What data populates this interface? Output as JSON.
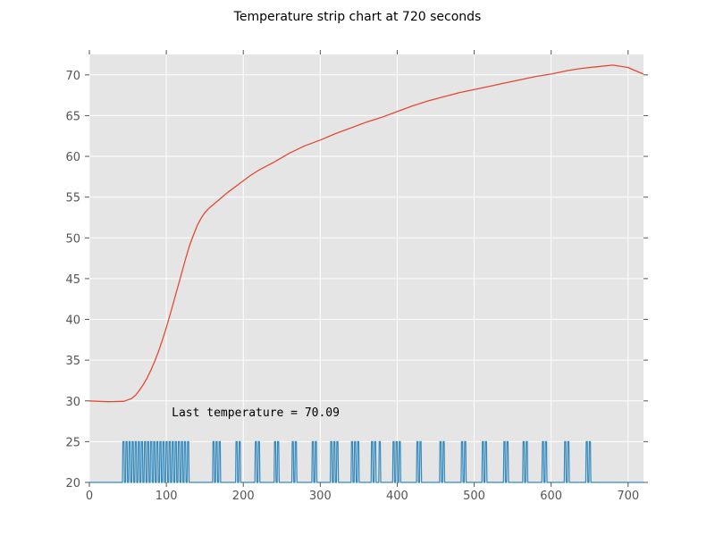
{
  "chart_data": {
    "type": "line",
    "title": "Temperature strip chart at 720 seconds",
    "xlabel": "",
    "ylabel": "",
    "xlim": [
      0,
      720
    ],
    "ylim": [
      20,
      72.5
    ],
    "xticks": [
      0,
      100,
      200,
      300,
      400,
      500,
      600,
      700
    ],
    "yticks": [
      20,
      25,
      30,
      35,
      40,
      45,
      50,
      55,
      60,
      65,
      70
    ],
    "grid": true,
    "style": "ggplot",
    "annotation": {
      "text": "Last temperature = 70.09",
      "x": 107,
      "y": 28
    },
    "series": [
      {
        "color": "#E24A33",
        "x": [
          0,
          25,
          45,
          55,
          60,
          65,
          70,
          75,
          80,
          85,
          90,
          95,
          100,
          105,
          110,
          115,
          120,
          125,
          130,
          135,
          140,
          145,
          150,
          155,
          160,
          165,
          170,
          175,
          180,
          190,
          200,
          210,
          220,
          240,
          260,
          280,
          300,
          320,
          340,
          360,
          380,
          400,
          420,
          440,
          460,
          480,
          500,
          520,
          540,
          560,
          580,
          600,
          620,
          640,
          660,
          680,
          700,
          720
        ],
        "y": [
          30.0,
          29.9,
          29.95,
          30.3,
          30.7,
          31.3,
          32.0,
          32.8,
          33.8,
          34.9,
          36.1,
          37.5,
          39.0,
          40.6,
          42.3,
          44.0,
          45.7,
          47.4,
          49.0,
          50.3,
          51.5,
          52.4,
          53.1,
          53.6,
          54.0,
          54.4,
          54.8,
          55.2,
          55.6,
          56.3,
          57.0,
          57.7,
          58.3,
          59.3,
          60.4,
          61.3,
          62.0,
          62.8,
          63.5,
          64.2,
          64.8,
          65.5,
          66.2,
          66.8,
          67.3,
          67.8,
          68.2,
          68.6,
          69.0,
          69.4,
          69.8,
          70.1,
          70.5,
          70.8,
          71.0,
          71.2,
          70.9,
          70.09
        ]
      },
      {
        "color": "#348ABD",
        "low": 20,
        "high": 25,
        "pulse_starts": [
          43,
          47,
          51,
          55,
          59,
          63,
          67,
          71,
          75,
          79,
          83,
          87,
          91,
          95,
          99,
          103,
          107,
          111,
          115,
          119,
          123,
          127,
          160,
          164,
          168,
          190,
          194,
          215,
          219,
          240,
          244,
          263,
          267,
          289,
          293,
          313,
          317,
          321,
          340,
          344,
          348,
          366,
          370,
          376,
          394,
          398,
          402,
          425,
          429,
          455,
          459,
          483,
          487,
          510,
          514,
          538,
          542,
          563,
          567,
          588,
          592,
          617,
          621,
          645,
          649
        ],
        "pulse_width": 2
      }
    ]
  }
}
